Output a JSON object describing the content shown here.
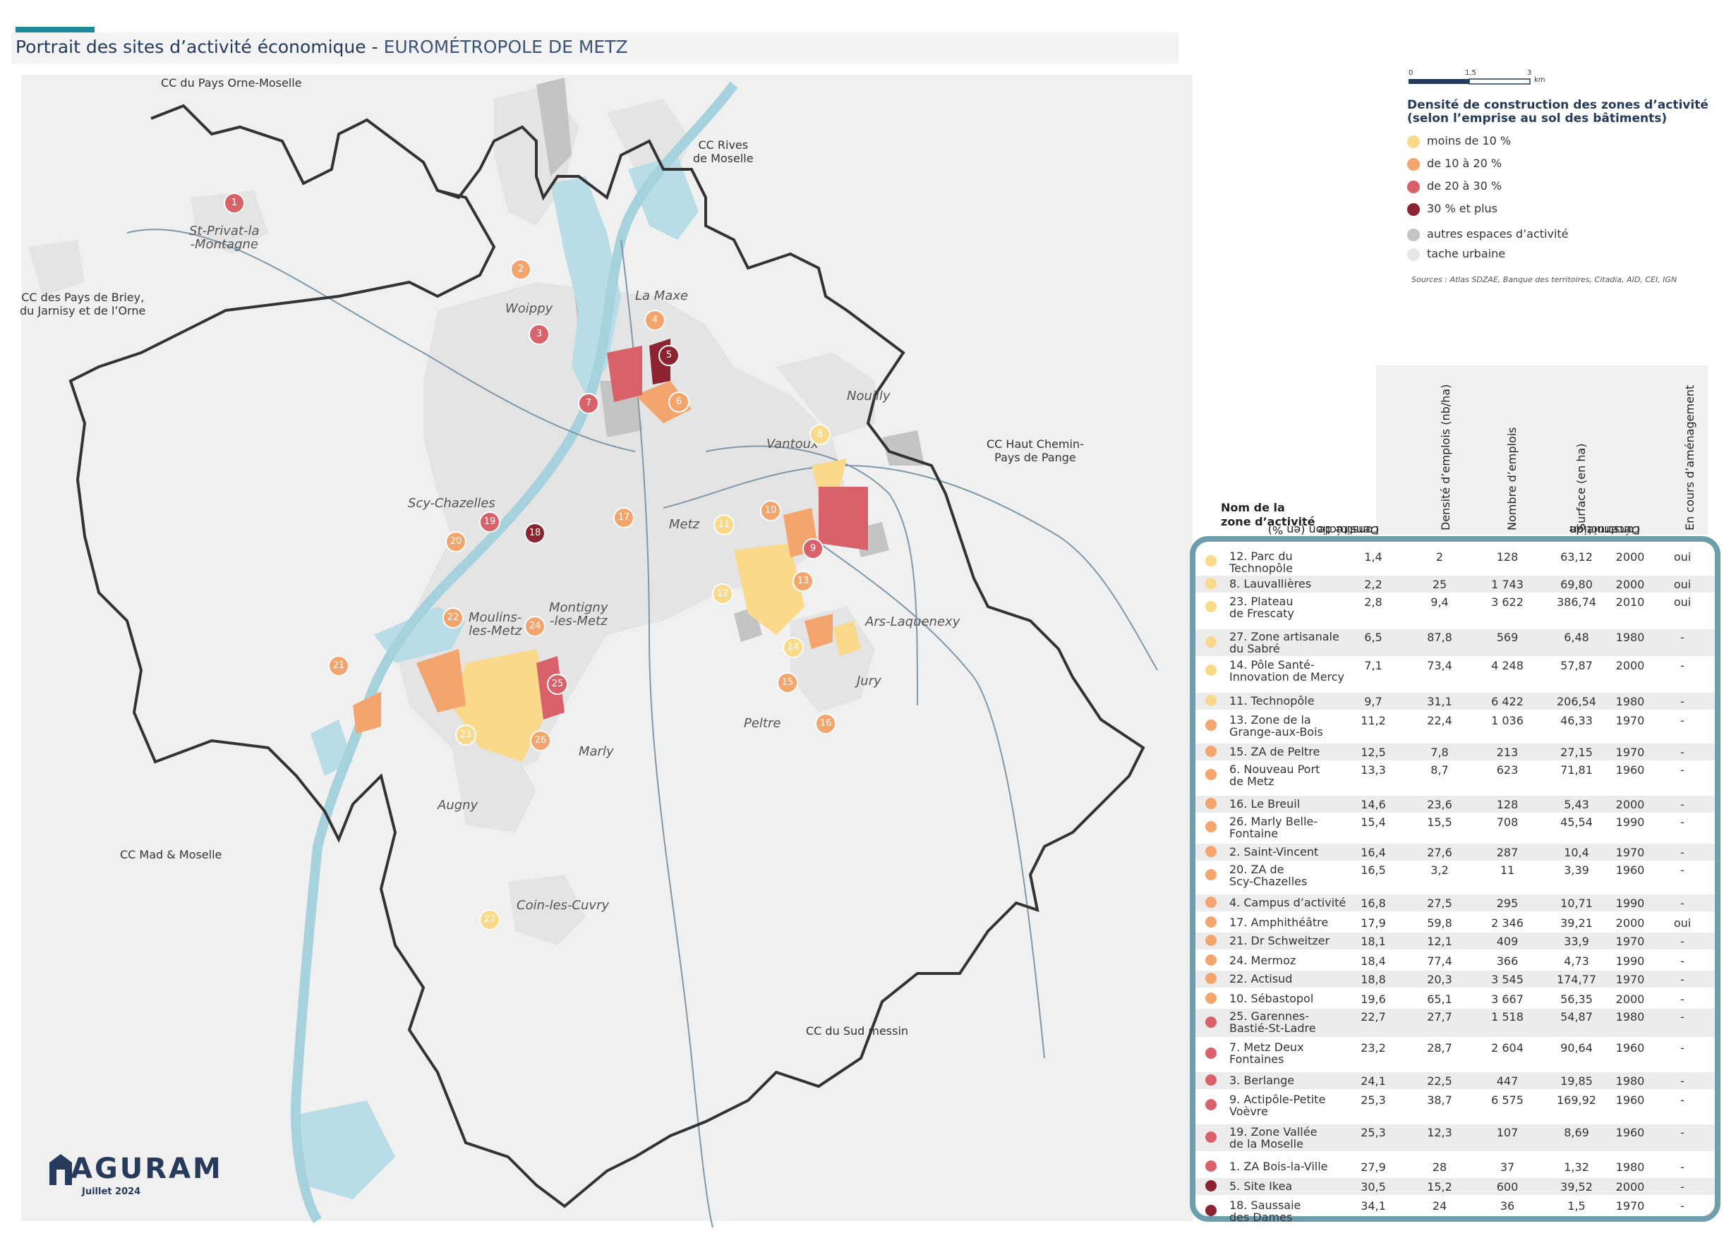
{
  "title": {
    "main": "Portrait des sites d’activité économique - ",
    "sub": "EUROMÉTROPOLE DE METZ"
  },
  "colors": {
    "accent": "#1f8a9a",
    "title": "#263a5c",
    "frame": "#6e9dab",
    "cls1": "#fbd98a",
    "cls2": "#f3a56d",
    "cls3": "#d9626a",
    "cls4": "#8b2430",
    "other": "#c4c4c4",
    "urban": "#e6e6e6",
    "water": "#b9dde6"
  },
  "scale": {
    "t0": "0",
    "t1": "1,5",
    "t2": "3",
    "unit": "km"
  },
  "legend": {
    "title_line1": "Densité de construction des zones d’activité",
    "title_line2": "(selon l’emprise au sol des bâtiments)",
    "cls1": "moins de 10 %",
    "cls2": "de 10 à 20 %",
    "cls3": "de 20 à 30 %",
    "cls4": "30 % et plus",
    "other": "autres espaces d’activité",
    "urban": "tache urbaine"
  },
  "sources": "Sources : Atlas SDZAE, Banque des territoires, Citadia, AID, CEI, IGN",
  "map_labels": {
    "cc_orne": "CC du Pays Orne-Moselle",
    "cc_rives_1": "CC Rives",
    "cc_rives_2": "de Moselle",
    "cc_briey_1": "CC des Pays de Briey,",
    "cc_briey_2": "du Jarnisy et de l’Orne",
    "cc_pange_1": "CC Haut Chemin-",
    "cc_pange_2": "Pays de Pange",
    "cc_mad": "CC Mad & Moselle",
    "cc_sud": "CC du Sud messin",
    "stprivat_1": "St-Privat-la",
    "stprivat_2": "-Montagne",
    "woippy": "Woippy",
    "lamaxe": "La Maxe",
    "nouilly": "Nouilly",
    "vantoux": "Vantoux",
    "scy": "Scy-Chazelles",
    "metz": "Metz",
    "moulins_1": "Moulins-",
    "moulins_2": "les-Metz",
    "montigny_1": "Montigny",
    "montigny_2": "-les-Metz",
    "ars": "Ars-Laquenexy",
    "jury": "Jury",
    "peltre": "Peltre",
    "marly": "Marly",
    "augny": "Augny",
    "coin": "Coin-les-Cuvry"
  },
  "markers": [
    {
      "num": "1",
      "cls": 3
    },
    {
      "num": "2",
      "cls": 2
    },
    {
      "num": "3",
      "cls": 3
    },
    {
      "num": "4",
      "cls": 2
    },
    {
      "num": "5",
      "cls": 4
    },
    {
      "num": "6",
      "cls": 2
    },
    {
      "num": "7",
      "cls": 3
    },
    {
      "num": "8",
      "cls": 1
    },
    {
      "num": "9",
      "cls": 3
    },
    {
      "num": "10",
      "cls": 2
    },
    {
      "num": "11",
      "cls": 1
    },
    {
      "num": "12",
      "cls": 1
    },
    {
      "num": "13",
      "cls": 2
    },
    {
      "num": "14",
      "cls": 1
    },
    {
      "num": "15",
      "cls": 2
    },
    {
      "num": "16",
      "cls": 2
    },
    {
      "num": "17",
      "cls": 2
    },
    {
      "num": "18",
      "cls": 4
    },
    {
      "num": "19",
      "cls": 3
    },
    {
      "num": "20",
      "cls": 2
    },
    {
      "num": "21",
      "cls": 2
    },
    {
      "num": "22",
      "cls": 2
    },
    {
      "num": "23",
      "cls": 1
    },
    {
      "num": "24",
      "cls": 2
    },
    {
      "num": "25",
      "cls": 3
    },
    {
      "num": "26",
      "cls": 2
    },
    {
      "num": "27",
      "cls": 1
    }
  ],
  "table": {
    "name_header_1": "Nom de la",
    "name_header_2": "zone d’activité",
    "col1": [
      "Densité de",
      "construction (en %)"
    ],
    "col2": [
      "Densité d’emplois (nb/ha)"
    ],
    "col3": [
      "Nombre d’emplois"
    ],
    "col4": [
      "Surface (en ha)"
    ],
    "col5": [
      "Décennie de",
      "construction"
    ],
    "col6": [
      "En cours d’aménagement"
    ],
    "rows": [
      {
        "l1": "12. Parc du",
        "l2": "Technopôle",
        "d": "1,4",
        "e": "2",
        "n": "128",
        "s": "63,12",
        "dec": "2000",
        "a": "oui",
        "cls": 1
      },
      {
        "l1": "8. Lauvallières",
        "l2": "",
        "d": "2,2",
        "e": "25",
        "n": "1 743",
        "s": "69,80",
        "dec": "2000",
        "a": "oui",
        "cls": 1
      },
      {
        "l1": "23. Plateau",
        "l2": "de Frescaty",
        "d": "2,8",
        "e": "9,4",
        "n": "3 622",
        "s": "386,74",
        "dec": "2010",
        "a": "oui",
        "cls": 1
      },
      {
        "l1": "27. Zone artisanale",
        "l2": "du Sabré",
        "d": "6,5",
        "e": "87,8",
        "n": "569",
        "s": "6,48",
        "dec": "1980",
        "a": "-",
        "cls": 1
      },
      {
        "l1": "14. Pôle Santé-",
        "l2": "Innovation de Mercy",
        "d": "7,1",
        "e": "73,4",
        "n": "4 248",
        "s": "57,87",
        "dec": "2000",
        "a": "-",
        "cls": 1
      },
      {
        "l1": "11. Technopôle",
        "l2": "",
        "d": "9,7",
        "e": "31,1",
        "n": "6 422",
        "s": "206,54",
        "dec": "1980",
        "a": "-",
        "cls": 1
      },
      {
        "l1": "13. Zone de la",
        "l2": "Grange-aux-Bois",
        "d": "11,2",
        "e": "22,4",
        "n": "1 036",
        "s": "46,33",
        "dec": "1970",
        "a": "-",
        "cls": 2
      },
      {
        "l1": "15. ZA de Peltre",
        "l2": "",
        "d": "12,5",
        "e": "7,8",
        "n": "213",
        "s": "27,15",
        "dec": "1970",
        "a": "-",
        "cls": 2
      },
      {
        "l1": "6. Nouveau Port",
        "l2": "de Metz",
        "d": "13,3",
        "e": "8,7",
        "n": "623",
        "s": "71,81",
        "dec": "1960",
        "a": "-",
        "cls": 2
      },
      {
        "l1": "16. Le Breuil",
        "l2": "",
        "d": "14,6",
        "e": "23,6",
        "n": "128",
        "s": "5,43",
        "dec": "2000",
        "a": "-",
        "cls": 2
      },
      {
        "l1": "26. Marly Belle-",
        "l2": "Fontaine",
        "d": "15,4",
        "e": "15,5",
        "n": "708",
        "s": "45,54",
        "dec": "1990",
        "a": "-",
        "cls": 2
      },
      {
        "l1": "2. Saint-Vincent",
        "l2": "",
        "d": "16,4",
        "e": "27,6",
        "n": "287",
        "s": "10,4",
        "dec": "1970",
        "a": "-",
        "cls": 2
      },
      {
        "l1": "20. ZA de",
        "l2": "Scy-Chazelles",
        "d": "16,5",
        "e": "3,2",
        "n": "11",
        "s": "3,39",
        "dec": "1960",
        "a": "-",
        "cls": 2
      },
      {
        "l1": "4. Campus d’activité",
        "l2": "",
        "d": "16,8",
        "e": "27,5",
        "n": "295",
        "s": "10,71",
        "dec": "1990",
        "a": "-",
        "cls": 2
      },
      {
        "l1": "17. Amphithéâtre",
        "l2": "",
        "d": "17,9",
        "e": "59,8",
        "n": "2 346",
        "s": "39,21",
        "dec": "2000",
        "a": "oui",
        "cls": 2
      },
      {
        "l1": "21. Dr Schweitzer",
        "l2": "",
        "d": "18,1",
        "e": "12,1",
        "n": "409",
        "s": "33,9",
        "dec": "1970",
        "a": "-",
        "cls": 2
      },
      {
        "l1": "24. Mermoz",
        "l2": "",
        "d": "18,4",
        "e": "77,4",
        "n": "366",
        "s": "4,73",
        "dec": "1990",
        "a": "-",
        "cls": 2
      },
      {
        "l1": "22. Actisud",
        "l2": "",
        "d": "18,8",
        "e": "20,3",
        "n": "3 545",
        "s": "174,77",
        "dec": "1970",
        "a": "-",
        "cls": 2
      },
      {
        "l1": "10. Sébastopol",
        "l2": "",
        "d": "19,6",
        "e": "65,1",
        "n": "3 667",
        "s": "56,35",
        "dec": "2000",
        "a": "-",
        "cls": 2
      },
      {
        "l1": "25. Garennes-",
        "l2": "Bastié-St-Ladre",
        "d": "22,7",
        "e": "27,7",
        "n": "1 518",
        "s": "54,87",
        "dec": "1980",
        "a": "-",
        "cls": 3
      },
      {
        "l1": "7. Metz Deux",
        "l2": "Fontaines",
        "d": "23,2",
        "e": "28,7",
        "n": "2 604",
        "s": "90,64",
        "dec": "1960",
        "a": "-",
        "cls": 3
      },
      {
        "l1": "3. Berlange",
        "l2": "",
        "d": "24,1",
        "e": "22,5",
        "n": "447",
        "s": "19,85",
        "dec": "1980",
        "a": "-",
        "cls": 3
      },
      {
        "l1": "9. Actipôle-Petite",
        "l2": "Voèvre",
        "d": "25,3",
        "e": "38,7",
        "n": "6 575",
        "s": "169,92",
        "dec": "1960",
        "a": "-",
        "cls": 3
      },
      {
        "l1": "19. Zone Vallée",
        "l2": "de la Moselle",
        "d": "25,3",
        "e": "12,3",
        "n": "107",
        "s": "8,69",
        "dec": "1960",
        "a": "-",
        "cls": 3
      },
      {
        "l1": "1. ZA Bois-la-Ville",
        "l2": "",
        "d": "27,9",
        "e": "28",
        "n": "37",
        "s": "1,32",
        "dec": "1980",
        "a": "-",
        "cls": 3
      },
      {
        "l1": "5. Site Ikea",
        "l2": "",
        "d": "30,5",
        "e": "15,2",
        "n": "600",
        "s": "39,52",
        "dec": "2000",
        "a": "-",
        "cls": 4
      },
      {
        "l1": "18. Saussaie",
        "l2": "des Dames",
        "d": "34,1",
        "e": "24",
        "n": "36",
        "s": "1,5",
        "dec": "1970",
        "a": "-",
        "cls": 4
      }
    ]
  },
  "logo": {
    "word": "AGURAM",
    "date": "Juillet 2024"
  }
}
